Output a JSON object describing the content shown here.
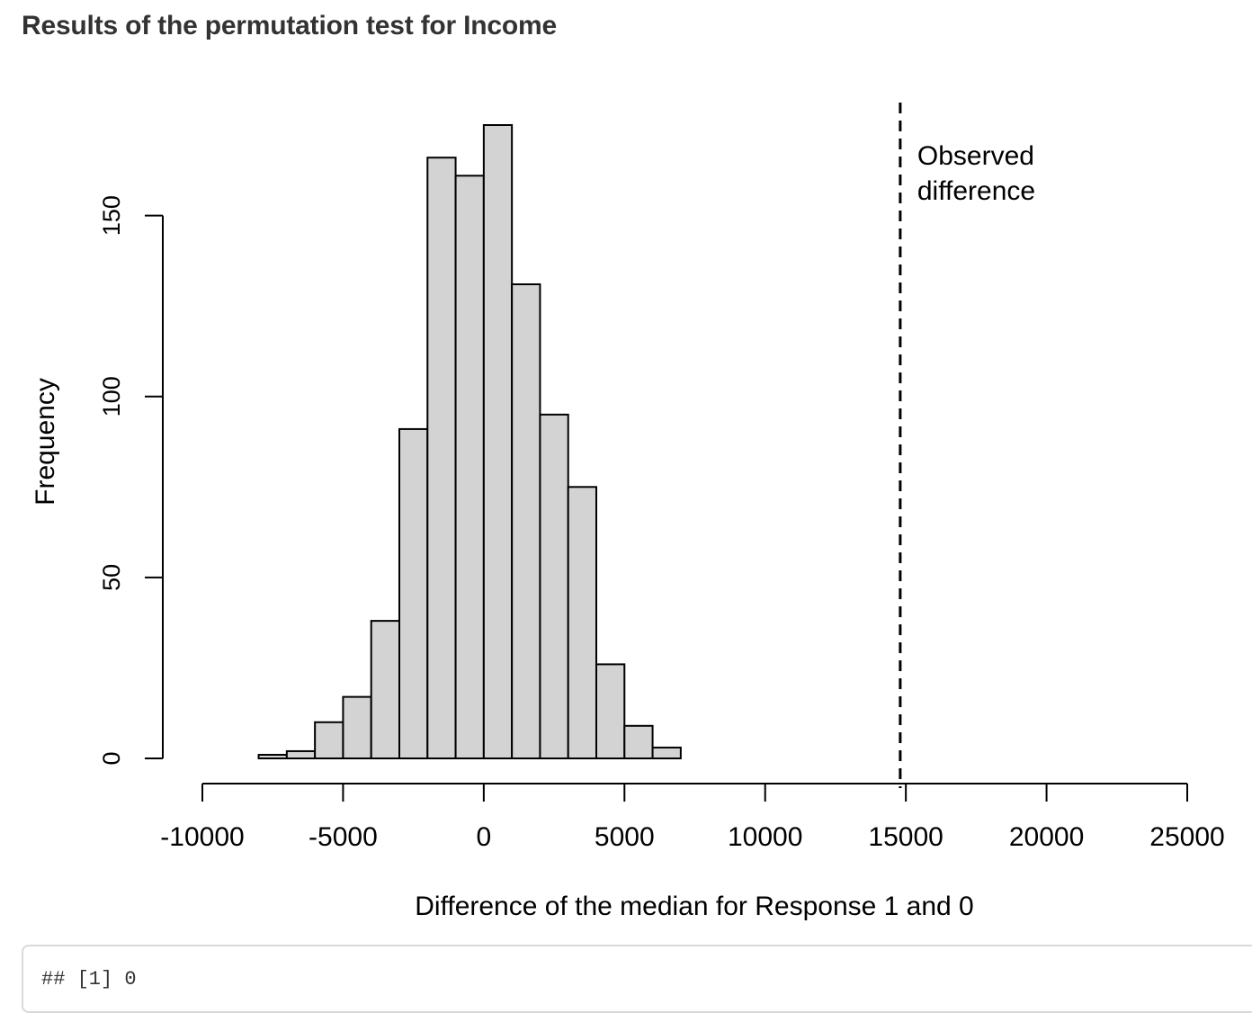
{
  "page": {
    "heading": "Results of the permutation test for Income"
  },
  "chart_data": {
    "type": "bar",
    "bin_edges": [
      -8000,
      -7000,
      -6000,
      -5000,
      -4000,
      -3000,
      -2000,
      -1000,
      0,
      1000,
      2000,
      3000,
      4000,
      5000,
      6000,
      7000
    ],
    "values": [
      1,
      2,
      10,
      17,
      38,
      91,
      166,
      161,
      175,
      131,
      95,
      75,
      26,
      9,
      3
    ],
    "xlim": [
      -10000,
      25000
    ],
    "ylim": [
      0,
      175
    ],
    "x_ticks": [
      -10000,
      -5000,
      0,
      5000,
      10000,
      15000,
      20000,
      25000
    ],
    "x_tick_labels": [
      "-10000",
      "-5000",
      "0",
      "5000",
      "10000",
      "15000",
      "20000",
      "25000"
    ],
    "y_ticks": [
      0,
      50,
      100,
      150
    ],
    "y_tick_labels": [
      "0",
      "50",
      "100",
      "150"
    ],
    "xlabel": "Difference of the median for Response 1 and 0",
    "ylabel": "Frequency",
    "bar_fill": "#d3d3d3",
    "bar_stroke": "#000000",
    "observed_line": {
      "x": 14800,
      "style": "dashed",
      "label_line1": "Observed",
      "label_line2": "difference"
    }
  },
  "output": {
    "text": "## [1] 0"
  }
}
